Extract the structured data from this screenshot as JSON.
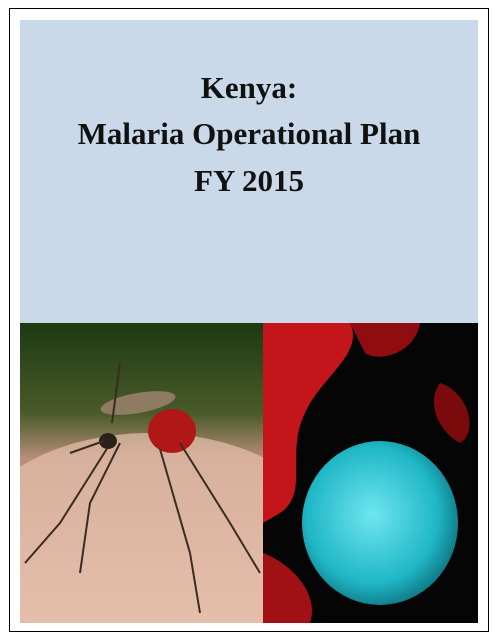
{
  "cover": {
    "title_lines": [
      "Kenya:",
      "Malaria Operational Plan",
      "FY 2015"
    ]
  }
}
